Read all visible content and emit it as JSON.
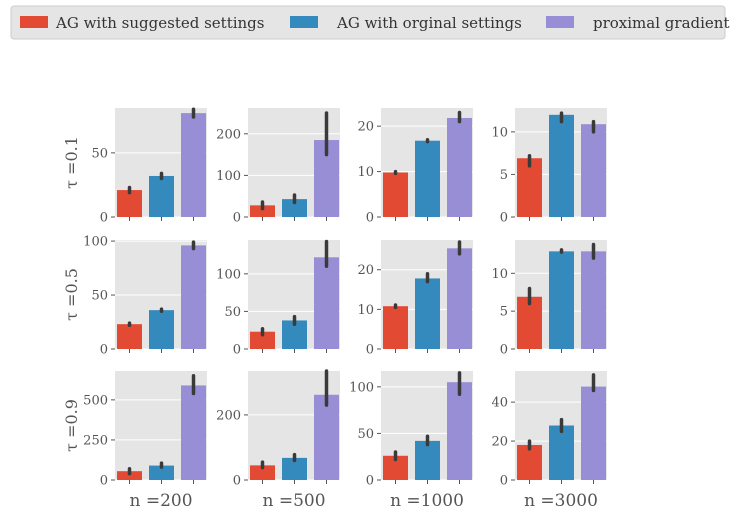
{
  "chart_data": {
    "type": "bar",
    "legend": {
      "placement": "top",
      "entries": [
        {
          "name": "AG with suggested settings",
          "color": "#E24A33"
        },
        {
          "name": "AG with orginal settings",
          "color": "#348ABD"
        },
        {
          "name": "proximal gradient",
          "color": "#988ED5"
        }
      ]
    },
    "row_labels": [
      "τ =0.1",
      "τ =0.5",
      "τ =0.9"
    ],
    "col_labels": [
      "n =200",
      "n =500",
      "n =1000",
      "n =3000"
    ],
    "panels": [
      [
        {
          "values": [
            21,
            32,
            81
          ],
          "err": [
            [
              19,
              23
            ],
            [
              30,
              34
            ],
            [
              78,
              84
            ]
          ],
          "ylim": [
            0,
            85
          ],
          "yticks": [
            0,
            50
          ]
        },
        {
          "values": [
            28,
            43,
            185
          ],
          "err": [
            [
              20,
              36
            ],
            [
              35,
              53
            ],
            [
              150,
              250
            ]
          ],
          "ylim": [
            0,
            262
          ],
          "yticks": [
            0,
            100,
            200
          ]
        },
        {
          "values": [
            9.8,
            16.8,
            21.8
          ],
          "err": [
            [
              9.6,
              10.0
            ],
            [
              16.6,
              17.0
            ],
            [
              21.0,
              23.0
            ]
          ],
          "ylim": [
            0,
            24
          ],
          "yticks": [
            0,
            10,
            20
          ]
        },
        {
          "values": [
            6.9,
            12.0,
            10.9
          ],
          "err": [
            [
              6.0,
              7.2
            ],
            [
              11.2,
              12.2
            ],
            [
              10.0,
              11.2
            ]
          ],
          "ylim": [
            0,
            12.8
          ],
          "yticks": [
            0,
            5,
            10
          ]
        }
      ],
      [
        {
          "values": [
            23,
            36,
            96
          ],
          "err": [
            [
              22,
              24
            ],
            [
              35,
              37
            ],
            [
              93,
              99
            ]
          ],
          "ylim": [
            0,
            101
          ],
          "yticks": [
            0,
            50,
            100
          ]
        },
        {
          "values": [
            23,
            38,
            122
          ],
          "err": [
            [
              19,
              27
            ],
            [
              33,
              43
            ],
            [
              110,
              143
            ]
          ],
          "ylim": [
            0,
            145
          ],
          "yticks": [
            0,
            50,
            100
          ]
        },
        {
          "values": [
            10.8,
            17.8,
            25.4
          ],
          "err": [
            [
              10.5,
              11.1
            ],
            [
              17.0,
              19.0
            ],
            [
              24.0,
              27.0
            ]
          ],
          "ylim": [
            0,
            27.5
          ],
          "yticks": [
            0,
            10,
            20
          ]
        },
        {
          "values": [
            6.9,
            12.9,
            12.9
          ],
          "err": [
            [
              6.0,
              8.0
            ],
            [
              12.8,
              13.1
            ],
            [
              12.0,
              13.8
            ]
          ],
          "ylim": [
            0,
            14.4
          ],
          "yticks": [
            0,
            5,
            10
          ]
        }
      ],
      [
        {
          "values": [
            55,
            90,
            590
          ],
          "err": [
            [
              40,
              70
            ],
            [
              80,
              105
            ],
            [
              540,
              650
            ]
          ],
          "ylim": [
            0,
            680
          ],
          "yticks": [
            0,
            250,
            500
          ]
        },
        {
          "values": [
            45,
            68,
            262
          ],
          "err": [
            [
              38,
              55
            ],
            [
              60,
              78
            ],
            [
              230,
              335
            ]
          ],
          "ylim": [
            0,
            335
          ],
          "yticks": [
            0,
            200
          ]
        },
        {
          "values": [
            26,
            42,
            105
          ],
          "err": [
            [
              22,
              30
            ],
            [
              38,
              47
            ],
            [
              92,
              115
            ]
          ],
          "ylim": [
            0,
            117
          ],
          "yticks": [
            0,
            50,
            100
          ]
        },
        {
          "values": [
            18,
            28,
            48
          ],
          "err": [
            [
              16,
              20
            ],
            [
              25,
              31
            ],
            [
              46,
              54
            ]
          ],
          "ylim": [
            0,
            56
          ],
          "yticks": [
            0,
            20,
            40
          ]
        }
      ]
    ]
  }
}
